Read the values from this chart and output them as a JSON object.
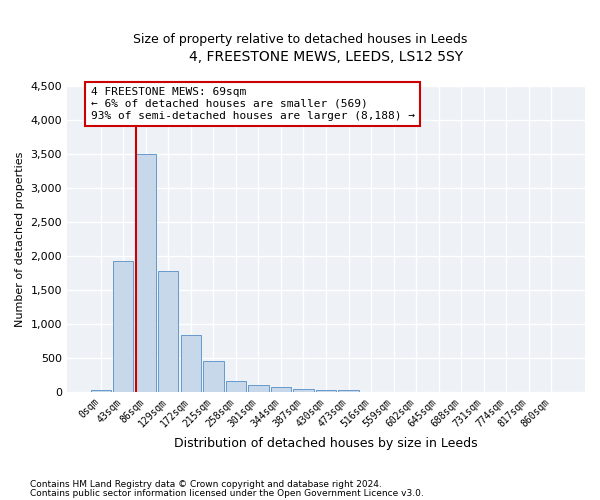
{
  "title": "4, FREESTONE MEWS, LEEDS, LS12 5SY",
  "subtitle": "Size of property relative to detached houses in Leeds",
  "xlabel": "Distribution of detached houses by size in Leeds",
  "ylabel": "Number of detached properties",
  "bar_color": "#c8d8eb",
  "bar_edge_color": "#6699cc",
  "bin_labels": [
    "0sqm",
    "43sqm",
    "86sqm",
    "129sqm",
    "172sqm",
    "215sqm",
    "258sqm",
    "301sqm",
    "344sqm",
    "387sqm",
    "430sqm",
    "473sqm",
    "516sqm",
    "559sqm",
    "602sqm",
    "645sqm",
    "688sqm",
    "731sqm",
    "774sqm",
    "817sqm",
    "860sqm"
  ],
  "bar_heights": [
    30,
    1920,
    3500,
    1780,
    840,
    460,
    160,
    95,
    70,
    45,
    30,
    20,
    0,
    0,
    0,
    0,
    0,
    0,
    0,
    0,
    0
  ],
  "ylim": [
    0,
    4500
  ],
  "yticks": [
    0,
    500,
    1000,
    1500,
    2000,
    2500,
    3000,
    3500,
    4000,
    4500
  ],
  "vline_x": 1.58,
  "vline_color": "#cc0000",
  "annotation_text": "4 FREESTONE MEWS: 69sqm\n← 6% of detached houses are smaller (569)\n93% of semi-detached houses are larger (8,188) →",
  "annotation_box_color": "#ffffff",
  "annotation_box_edge": "#cc0000",
  "footer_line1": "Contains HM Land Registry data © Crown copyright and database right 2024.",
  "footer_line2": "Contains public sector information licensed under the Open Government Licence v3.0.",
  "background_color": "#eef2f7",
  "title_fontsize": 10,
  "subtitle_fontsize": 9
}
